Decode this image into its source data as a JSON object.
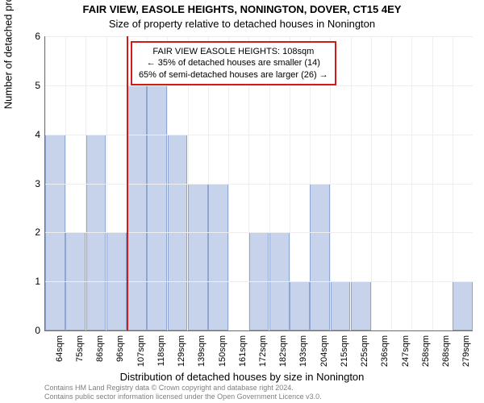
{
  "chart": {
    "type": "bar",
    "title_line1": "FAIR VIEW, EASOLE HEIGHTS, NONINGTON, DOVER, CT15 4EY",
    "title_line2": "Size of property relative to detached houses in Nonington",
    "xlabel": "Distribution of detached houses by size in Nonington",
    "ylabel": "Number of detached properties",
    "ylim": [
      0,
      6
    ],
    "ytick_step": 1,
    "categories": [
      "64sqm",
      "75sqm",
      "86sqm",
      "96sqm",
      "107sqm",
      "118sqm",
      "129sqm",
      "139sqm",
      "150sqm",
      "161sqm",
      "172sqm",
      "182sqm",
      "193sqm",
      "204sqm",
      "215sqm",
      "225sqm",
      "236sqm",
      "247sqm",
      "258sqm",
      "268sqm",
      "279sqm"
    ],
    "values": [
      4,
      2,
      4,
      2,
      5,
      5,
      4,
      3,
      3,
      0,
      2,
      2,
      1,
      3,
      1,
      1,
      0,
      0,
      0,
      0,
      1
    ],
    "bar_color": "#c6d3eb",
    "bar_border_color": "#90a6d0",
    "background_color": "#ffffff",
    "grid_color": "#eeeeee",
    "axis_color": "#6f6f6f",
    "marker": {
      "color": "#d11b1b",
      "position_index": 4,
      "callout_line1": "FAIR VIEW EASOLE HEIGHTS: 108sqm",
      "callout_line2": "← 35% of detached houses are smaller (14)",
      "callout_line3": "65% of semi-detached houses are larger (26) →"
    },
    "footer_line1": "Contains HM Land Registry data © Crown copyright and database right 2024.",
    "footer_line2": "Contains public sector information licensed under the Open Government Licence v3.0.",
    "footer_color": "#808080",
    "title_fontsize": 13,
    "label_fontsize": 13,
    "tick_fontsize": 12
  }
}
